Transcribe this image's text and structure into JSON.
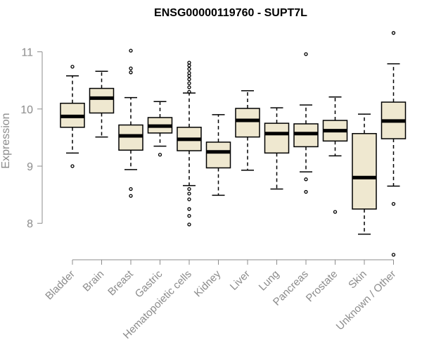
{
  "chart_data": {
    "type": "boxplot",
    "title": "ENSG00000119760 - SUPT7L",
    "xlabel": "",
    "ylabel": "Expression",
    "ylim": [
      7.35,
      11.5
    ],
    "yticks": [
      8,
      9,
      10,
      11
    ],
    "box_fill": "#efe8d0",
    "categories": [
      "Bladder",
      "Brain",
      "Breast",
      "Gastric",
      "Hematopoietic cells",
      "Kidney",
      "Liver",
      "Lung",
      "Pancreas",
      "Prostate",
      "Skin",
      "Unknown / Other"
    ],
    "boxes": [
      {
        "category": "Bladder",
        "whisker_low": 9.23,
        "q1": 9.68,
        "median": 9.87,
        "q3": 10.1,
        "whisker_high": 10.58,
        "outliers": [
          9.0,
          10.74
        ]
      },
      {
        "category": "Brain",
        "whisker_low": 9.51,
        "q1": 9.93,
        "median": 10.19,
        "q3": 10.36,
        "whisker_high": 10.66,
        "outliers": []
      },
      {
        "category": "Breast",
        "whisker_low": 8.94,
        "q1": 9.28,
        "median": 9.53,
        "q3": 9.72,
        "whisker_high": 10.2,
        "outliers": [
          8.48,
          8.6,
          10.64,
          10.71,
          11.02
        ]
      },
      {
        "category": "Gastric",
        "whisker_low": 9.35,
        "q1": 9.58,
        "median": 9.7,
        "q3": 9.85,
        "whisker_high": 10.13,
        "outliers": [
          9.2
        ]
      },
      {
        "category": "Hematopoietic cells",
        "whisker_low": 8.66,
        "q1": 9.27,
        "median": 9.47,
        "q3": 9.68,
        "whisker_high": 10.28,
        "outliers": [
          7.98,
          8.13,
          8.25,
          8.42,
          8.52,
          8.6,
          10.3,
          10.38,
          10.45,
          10.52,
          10.58,
          10.63,
          10.7,
          10.76,
          10.81
        ]
      },
      {
        "category": "Kidney",
        "whisker_low": 8.49,
        "q1": 8.97,
        "median": 9.25,
        "q3": 9.42,
        "whisker_high": 9.9,
        "outliers": []
      },
      {
        "category": "Liver",
        "whisker_low": 8.93,
        "q1": 9.51,
        "median": 9.8,
        "q3": 10.01,
        "whisker_high": 10.32,
        "outliers": []
      },
      {
        "category": "Lung",
        "whisker_low": 8.6,
        "q1": 9.23,
        "median": 9.57,
        "q3": 9.75,
        "whisker_high": 10.02,
        "outliers": []
      },
      {
        "category": "Pancreas",
        "whisker_low": 8.9,
        "q1": 9.34,
        "median": 9.57,
        "q3": 9.74,
        "whisker_high": 10.07,
        "outliers": [
          8.55,
          8.77,
          10.96
        ]
      },
      {
        "category": "Prostate",
        "whisker_low": 9.18,
        "q1": 9.44,
        "median": 9.62,
        "q3": 9.8,
        "whisker_high": 10.21,
        "outliers": [
          8.2
        ]
      },
      {
        "category": "Skin",
        "whisker_low": 7.81,
        "q1": 8.25,
        "median": 8.8,
        "q3": 9.57,
        "whisker_high": 9.91,
        "outliers": []
      },
      {
        "category": "Unknown / Other",
        "whisker_low": 8.65,
        "q1": 9.48,
        "median": 9.79,
        "q3": 10.12,
        "whisker_high": 10.79,
        "outliers": [
          7.45,
          8.34,
          11.33
        ]
      }
    ]
  }
}
